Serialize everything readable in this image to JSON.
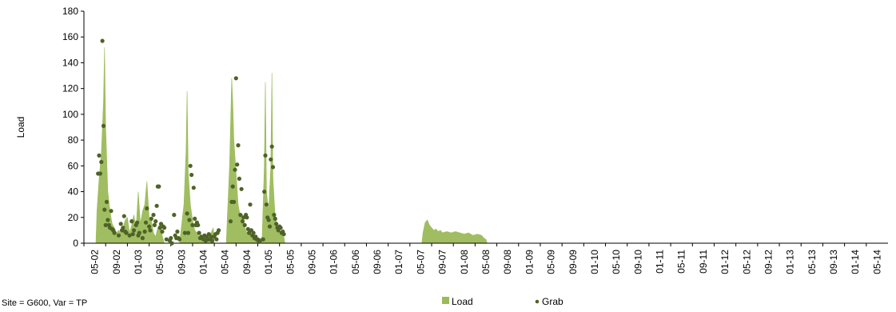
{
  "chart_data": {
    "type": "area",
    "ylabel": "Load",
    "ylim": [
      0,
      180
    ],
    "yticks": [
      0,
      20,
      40,
      60,
      80,
      100,
      120,
      140,
      160,
      180
    ],
    "xticks": [
      "05-02",
      "09-02",
      "01-03",
      "05-03",
      "09-03",
      "01-04",
      "05-04",
      "09-04",
      "01-05",
      "05-05",
      "09-05",
      "01-06",
      "05-06",
      "09-06",
      "01-07",
      "05-07",
      "09-07",
      "01-08",
      "05-08",
      "09-08",
      "01-09",
      "05-09",
      "09-09",
      "01-10",
      "05-10",
      "09-10",
      "01-11",
      "05-11",
      "09-11",
      "01-12",
      "05-12",
      "09-12",
      "01-13",
      "05-13",
      "09-13",
      "01-14",
      "05-14"
    ],
    "footer": "Site = G600, Var = TP",
    "legend": [
      {
        "name": "Load",
        "marker": "bar",
        "color": "#9bbb59"
      },
      {
        "name": "Grab",
        "marker": "dot",
        "color": "#4f6228"
      }
    ],
    "series": [
      {
        "name": "Load",
        "color": "#9bbb59",
        "points": [
          [
            0.05,
            0
          ],
          [
            0.1,
            25
          ],
          [
            0.2,
            50
          ],
          [
            0.3,
            70
          ],
          [
            0.4,
            110
          ],
          [
            0.45,
            152
          ],
          [
            0.5,
            90
          ],
          [
            0.6,
            40
          ],
          [
            0.7,
            25
          ],
          [
            0.8,
            15
          ],
          [
            0.9,
            12
          ],
          [
            1.0,
            8
          ],
          [
            1.1,
            10
          ],
          [
            1.2,
            8
          ],
          [
            1.3,
            12
          ],
          [
            1.4,
            18
          ],
          [
            1.5,
            20
          ],
          [
            1.6,
            8
          ],
          [
            1.7,
            14
          ],
          [
            1.8,
            22
          ],
          [
            1.9,
            12
          ],
          [
            2.0,
            40
          ],
          [
            2.1,
            15
          ],
          [
            2.2,
            25
          ],
          [
            2.3,
            30
          ],
          [
            2.4,
            48
          ],
          [
            2.5,
            20
          ],
          [
            2.6,
            18
          ],
          [
            2.7,
            8
          ],
          [
            2.8,
            5
          ],
          [
            2.9,
            12
          ],
          [
            3.0,
            15
          ],
          [
            3.1,
            6
          ],
          [
            3.2,
            0
          ],
          [
            3.9,
            0
          ],
          [
            4.0,
            15
          ],
          [
            4.1,
            30
          ],
          [
            4.2,
            72
          ],
          [
            4.25,
            118
          ],
          [
            4.3,
            55
          ],
          [
            4.4,
            30
          ],
          [
            4.5,
            18
          ],
          [
            4.6,
            10
          ],
          [
            4.7,
            8
          ],
          [
            4.8,
            5
          ],
          [
            4.9,
            4
          ],
          [
            5.0,
            6
          ],
          [
            5.1,
            5
          ],
          [
            5.2,
            7
          ],
          [
            5.3,
            6
          ],
          [
            5.4,
            10
          ],
          [
            5.45,
            12
          ],
          [
            5.5,
            0
          ],
          [
            6.05,
            0
          ],
          [
            6.1,
            20
          ],
          [
            6.2,
            60
          ],
          [
            6.3,
            128
          ],
          [
            6.35,
            110
          ],
          [
            6.4,
            80
          ],
          [
            6.5,
            55
          ],
          [
            6.6,
            30
          ],
          [
            6.7,
            20
          ],
          [
            6.8,
            22
          ],
          [
            6.9,
            12
          ],
          [
            7.0,
            8
          ],
          [
            7.1,
            10
          ],
          [
            7.2,
            6
          ],
          [
            7.3,
            4
          ],
          [
            7.4,
            3
          ],
          [
            7.5,
            2
          ],
          [
            7.6,
            3
          ],
          [
            7.7,
            5
          ],
          [
            7.8,
            60
          ],
          [
            7.85,
            125
          ],
          [
            7.9,
            40
          ],
          [
            8.0,
            25
          ],
          [
            8.1,
            60
          ],
          [
            8.15,
            132
          ],
          [
            8.2,
            50
          ],
          [
            8.3,
            20
          ],
          [
            8.4,
            14
          ],
          [
            8.5,
            10
          ],
          [
            8.6,
            8
          ],
          [
            8.7,
            5
          ],
          [
            8.75,
            0
          ],
          [
            15.05,
            0
          ],
          [
            15.1,
            8
          ],
          [
            15.2,
            16
          ],
          [
            15.3,
            18
          ],
          [
            15.4,
            14
          ],
          [
            15.5,
            12
          ],
          [
            15.6,
            10
          ],
          [
            15.7,
            11
          ],
          [
            15.8,
            9
          ],
          [
            15.9,
            10
          ],
          [
            16.0,
            8
          ],
          [
            16.2,
            9
          ],
          [
            16.4,
            8
          ],
          [
            16.6,
            9
          ],
          [
            16.8,
            8
          ],
          [
            17.0,
            7
          ],
          [
            17.2,
            8
          ],
          [
            17.4,
            6
          ],
          [
            17.6,
            7
          ],
          [
            17.8,
            6
          ],
          [
            17.9,
            4
          ],
          [
            18.0,
            3
          ],
          [
            18.05,
            0
          ]
        ]
      },
      {
        "name": "Grab",
        "color": "#4f6228",
        "points": [
          [
            0.15,
            54
          ],
          [
            0.2,
            68
          ],
          [
            0.25,
            54
          ],
          [
            0.3,
            63
          ],
          [
            0.35,
            157
          ],
          [
            0.4,
            91
          ],
          [
            0.45,
            26
          ],
          [
            0.5,
            14
          ],
          [
            0.55,
            32
          ],
          [
            0.6,
            18
          ],
          [
            0.65,
            14
          ],
          [
            0.7,
            12
          ],
          [
            0.75,
            25
          ],
          [
            0.8,
            11
          ],
          [
            0.85,
            10
          ],
          [
            0.9,
            8
          ],
          [
            1.1,
            6
          ],
          [
            1.2,
            15
          ],
          [
            1.25,
            10
          ],
          [
            1.3,
            12
          ],
          [
            1.35,
            21
          ],
          [
            1.4,
            9
          ],
          [
            1.45,
            8
          ],
          [
            1.6,
            6
          ],
          [
            1.7,
            17
          ],
          [
            1.75,
            7
          ],
          [
            1.8,
            10
          ],
          [
            1.9,
            14
          ],
          [
            1.95,
            16
          ],
          [
            2.0,
            6
          ],
          [
            2.05,
            8
          ],
          [
            2.2,
            4
          ],
          [
            2.3,
            9
          ],
          [
            2.35,
            16
          ],
          [
            2.4,
            27
          ],
          [
            2.5,
            13
          ],
          [
            2.55,
            10
          ],
          [
            2.6,
            19
          ],
          [
            2.7,
            22
          ],
          [
            2.75,
            14
          ],
          [
            2.8,
            17
          ],
          [
            2.85,
            29
          ],
          [
            2.9,
            44
          ],
          [
            2.95,
            44
          ],
          [
            3.0,
            12
          ],
          [
            3.05,
            15
          ],
          [
            3.1,
            9
          ],
          [
            3.15,
            13
          ],
          [
            3.2,
            12
          ],
          [
            3.3,
            3
          ],
          [
            3.45,
            2
          ],
          [
            3.5,
            4
          ],
          [
            3.55,
            0
          ],
          [
            3.65,
            22
          ],
          [
            3.7,
            6
          ],
          [
            3.75,
            4
          ],
          [
            3.8,
            9
          ],
          [
            3.85,
            4
          ],
          [
            3.9,
            3
          ],
          [
            4.15,
            8
          ],
          [
            4.25,
            23
          ],
          [
            4.3,
            8
          ],
          [
            4.35,
            18
          ],
          [
            4.4,
            60
          ],
          [
            4.45,
            53
          ],
          [
            4.5,
            14
          ],
          [
            4.55,
            43
          ],
          [
            4.6,
            19
          ],
          [
            4.65,
            14
          ],
          [
            4.7,
            16
          ],
          [
            4.75,
            14
          ],
          [
            4.8,
            8
          ],
          [
            4.85,
            4
          ],
          [
            4.9,
            5
          ],
          [
            5.0,
            3
          ],
          [
            5.05,
            6
          ],
          [
            5.1,
            2
          ],
          [
            5.15,
            5
          ],
          [
            5.2,
            3
          ],
          [
            5.25,
            7
          ],
          [
            5.3,
            3
          ],
          [
            5.35,
            5
          ],
          [
            5.4,
            2
          ],
          [
            5.5,
            5
          ],
          [
            5.55,
            7
          ],
          [
            5.6,
            3
          ],
          [
            5.65,
            8
          ],
          [
            5.7,
            10
          ],
          [
            6.25,
            17
          ],
          [
            6.3,
            32
          ],
          [
            6.35,
            44
          ],
          [
            6.4,
            32
          ],
          [
            6.45,
            57
          ],
          [
            6.5,
            128
          ],
          [
            6.55,
            61
          ],
          [
            6.6,
            76
          ],
          [
            6.65,
            50
          ],
          [
            6.7,
            22
          ],
          [
            6.75,
            42
          ],
          [
            6.8,
            17
          ],
          [
            6.85,
            20
          ],
          [
            6.9,
            14
          ],
          [
            6.95,
            22
          ],
          [
            7.0,
            20
          ],
          [
            7.05,
            11
          ],
          [
            7.1,
            8
          ],
          [
            7.15,
            30
          ],
          [
            7.2,
            10
          ],
          [
            7.25,
            6
          ],
          [
            7.3,
            8
          ],
          [
            7.35,
            4
          ],
          [
            7.4,
            5
          ],
          [
            7.45,
            3
          ],
          [
            7.5,
            3
          ],
          [
            7.55,
            1
          ],
          [
            7.6,
            2
          ],
          [
            7.75,
            3
          ],
          [
            7.8,
            40
          ],
          [
            7.85,
            68
          ],
          [
            7.9,
            30
          ],
          [
            7.95,
            20
          ],
          [
            8.0,
            18
          ],
          [
            8.05,
            13
          ],
          [
            8.1,
            65
          ],
          [
            8.15,
            75
          ],
          [
            8.2,
            59
          ],
          [
            8.25,
            22
          ],
          [
            8.3,
            19
          ],
          [
            8.35,
            15
          ],
          [
            8.4,
            12
          ],
          [
            8.45,
            10
          ],
          [
            8.5,
            13
          ],
          [
            8.55,
            12
          ],
          [
            8.6,
            8
          ],
          [
            8.65,
            9
          ],
          [
            8.7,
            7
          ]
        ]
      }
    ]
  }
}
